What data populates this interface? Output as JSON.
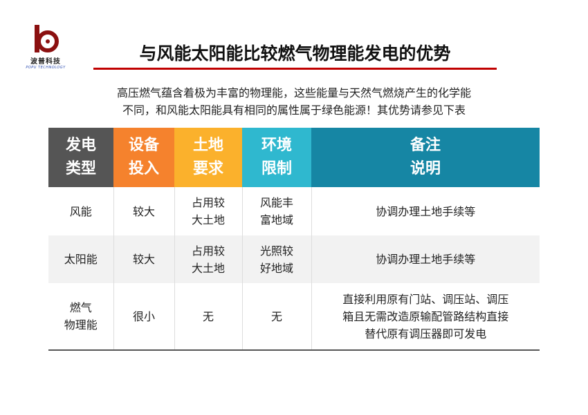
{
  "logo": {
    "cn": "波普科技",
    "en": "POPU TECHNOLOGY",
    "color": "#8b1010"
  },
  "title": "与风能太阳能比较燃气物理能发电的优势",
  "intro": [
    "高压燃气蕴含着极为丰富的物理能，这些能量与天然气燃烧产生的化学能",
    "不同，和风能太阳能具有相同的属性属于绿色能源！其优势请参见下表"
  ],
  "table": {
    "headers": [
      {
        "l1": "发电",
        "l2": "类型",
        "color": "#555555"
      },
      {
        "l1": "设备",
        "l2": "投入",
        "color": "#f5822d"
      },
      {
        "l1": "土地",
        "l2": "要求",
        "color": "#fbb12c"
      },
      {
        "l1": "环境",
        "l2": "限制",
        "color": "#2fb8cf"
      },
      {
        "l1": "备注",
        "l2": "说明",
        "color": "#1686a4"
      }
    ],
    "rows": [
      {
        "type": [
          "风能"
        ],
        "equip": "较大",
        "land": [
          "占用较",
          "大土地"
        ],
        "env": [
          "风能丰",
          "富地域"
        ],
        "note": [
          "协调办理土地手续等"
        ]
      },
      {
        "type": [
          "太阳能"
        ],
        "equip": "较大",
        "land": [
          "占用较",
          "大土地"
        ],
        "env": [
          "光照较",
          "好地域"
        ],
        "note": [
          "协调办理土地手续等"
        ]
      },
      {
        "type": [
          "燃气",
          "物理能"
        ],
        "equip": "很小",
        "land": [
          "无"
        ],
        "env": [
          "无"
        ],
        "note": [
          "直接利用原有门站、调压站、调压",
          "箱且无需改造原输配管路结构直接",
          "替代原有调压器即可发电"
        ]
      }
    ]
  }
}
